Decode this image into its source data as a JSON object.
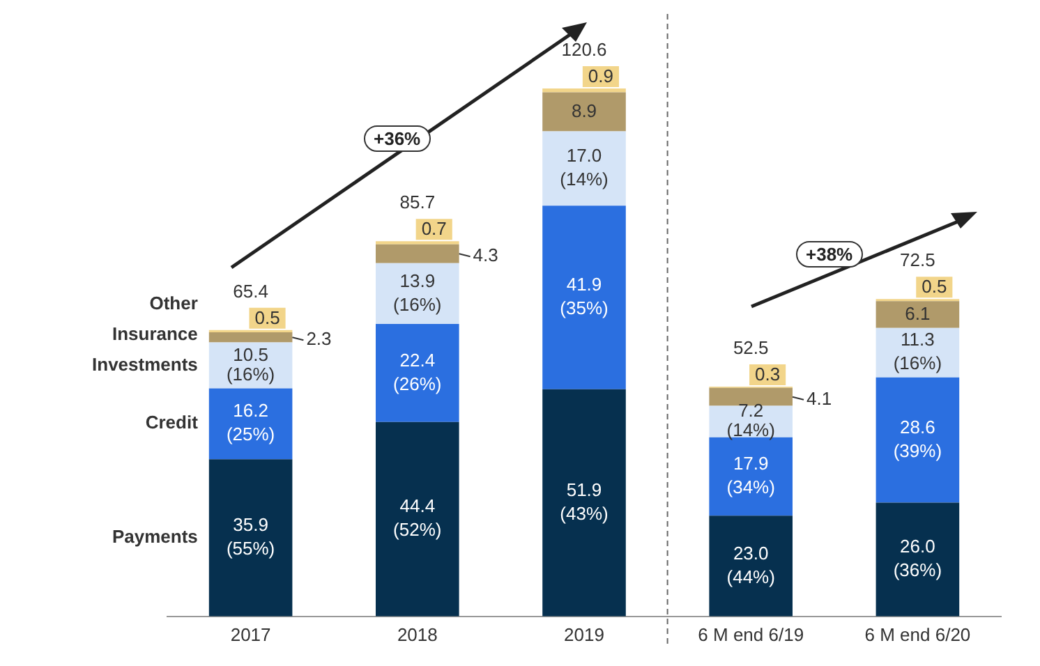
{
  "chart_data": {
    "type": "bar",
    "stacked": true,
    "categories": [
      "2017",
      "2018",
      "2019",
      "6 M end 6/19",
      "6 M end 6/20"
    ],
    "series": [
      {
        "name": "Payments",
        "color": "#06304f",
        "values": [
          35.9,
          44.4,
          51.9,
          23.0,
          26.0
        ],
        "value_labels": [
          "35.9 (55%)",
          "44.4 (52%)",
          "51.9 (43%)",
          "23.0 (44%)",
          "26.0 (36%)"
        ]
      },
      {
        "name": "Credit",
        "color": "#2b6fe0",
        "values": [
          16.2,
          22.4,
          41.9,
          17.9,
          28.6
        ],
        "value_labels": [
          "16.2 (25%)",
          "22.4 (26%)",
          "41.9 (35%)",
          "17.9 (34%)",
          "28.6 (39%)"
        ]
      },
      {
        "name": "Investments",
        "color": "#d5e4f7",
        "values": [
          10.5,
          13.9,
          17.0,
          7.2,
          11.3
        ],
        "value_labels": [
          "10.5 (16%)",
          "13.9 (16%)",
          "17.0 (14%)",
          "7.2 (14%)",
          "11.3 (16%)"
        ]
      },
      {
        "name": "Insurance",
        "color": "#b09a6a",
        "values": [
          2.3,
          4.3,
          8.9,
          4.1,
          6.1
        ],
        "value_labels": [
          "2.3",
          "4.3",
          "8.9",
          "4.1",
          "6.1"
        ]
      },
      {
        "name": "Other",
        "color": "#f2d58a",
        "values": [
          0.5,
          0.7,
          0.9,
          0.3,
          0.5
        ],
        "value_labels": [
          "0.5",
          "0.7",
          "0.9",
          "0.3",
          "0.5"
        ]
      }
    ],
    "totals": [
      "65.4",
      "85.7",
      "120.6",
      "52.5",
      "72.5"
    ],
    "annotations": [
      "+36%",
      "+38%"
    ],
    "grid": false
  }
}
